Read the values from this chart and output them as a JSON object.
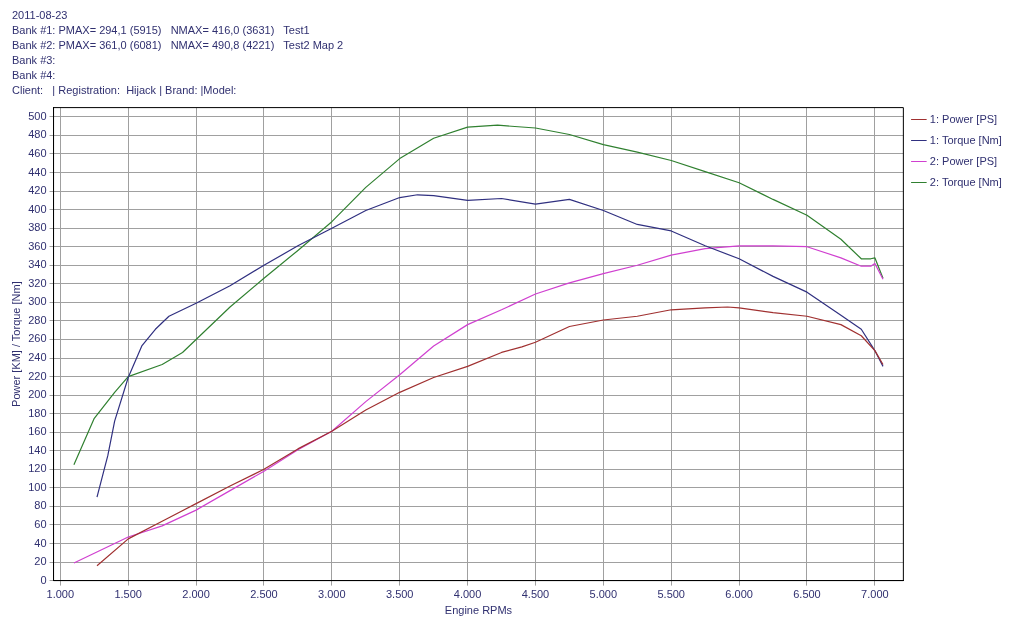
{
  "chart_data": {
    "type": "line",
    "annotations": [
      "2011-08-23",
      "Bank #1: PMAX= 294,1 (5915)   NMAX= 416,0 (3631)   Test1",
      "Bank #2: PMAX= 361,0 (6081)   NMAX= 490,8 (4221)   Test2 Map 2",
      "Bank #3:",
      "Bank #4:",
      "Client:   | Registration:  Hijack | Brand: |Model:"
    ],
    "xlabel": "Engine RPMs",
    "ylabel": "Power [KM] / Torque [Nm]",
    "series": [
      {
        "name": "1: Power [PS]",
        "color": "#a03030",
        "x": [
          1270,
          1500,
          1750,
          2000,
          2250,
          2500,
          2750,
          3000,
          3250,
          3500,
          3750,
          4000,
          4250,
          4400,
          4500,
          4750,
          5000,
          5250,
          5500,
          5750,
          5915,
          6000,
          6250,
          6500,
          6750,
          6900,
          7000,
          7060
        ],
        "values": [
          16,
          45,
          64,
          83,
          102,
          120,
          142,
          161,
          184,
          203,
          219,
          231,
          246,
          252,
          257,
          274,
          281,
          285,
          292,
          294,
          295,
          294,
          289,
          285,
          276,
          264,
          248,
          233
        ]
      },
      {
        "name": "1: Torque [Nm]",
        "color": "#303080",
        "x": [
          1270,
          1350,
          1400,
          1500,
          1600,
          1700,
          1800,
          2000,
          2250,
          2500,
          2750,
          3000,
          3250,
          3500,
          3631,
          3750,
          4000,
          4250,
          4500,
          4750,
          5000,
          5250,
          5500,
          5750,
          6000,
          6250,
          6500,
          6750,
          6900,
          7000,
          7060
        ],
        "values": [
          90,
          135,
          172,
          219,
          253,
          271,
          285,
          299,
          318,
          340,
          361,
          380,
          399,
          413,
          416,
          415,
          410,
          412,
          406,
          411,
          399,
          384,
          377,
          361,
          347,
          328,
          311,
          286,
          271,
          248,
          231
        ]
      },
      {
        "name": "2: Power [PS]",
        "color": "#d040d0",
        "x": [
          1100,
          1500,
          1750,
          2000,
          2250,
          2500,
          2750,
          3000,
          3250,
          3500,
          3750,
          4000,
          4250,
          4500,
          4750,
          5000,
          5250,
          5500,
          5750,
          6000,
          6081,
          6250,
          6500,
          6750,
          6900,
          6970,
          7000,
          7060
        ],
        "values": [
          19,
          47,
          59,
          76,
          97,
          118,
          141,
          161,
          193,
          222,
          253,
          276,
          292,
          309,
          321,
          331,
          340,
          351,
          358,
          361,
          361,
          361,
          360,
          348,
          339,
          339,
          342,
          325
        ]
      },
      {
        "name": "2: Torque [Nm]",
        "color": "#308030",
        "x": [
          1100,
          1250,
          1400,
          1500,
          1750,
          1900,
          2000,
          2250,
          2500,
          2750,
          3000,
          3250,
          3500,
          3750,
          4000,
          4221,
          4500,
          4750,
          5000,
          5250,
          5500,
          5750,
          6000,
          6250,
          6500,
          6750,
          6900,
          6970,
          7000,
          7060
        ],
        "values": [
          125,
          175,
          203,
          220,
          233,
          246,
          260,
          295,
          326,
          356,
          387,
          424,
          455,
          477,
          489,
          491,
          488,
          481,
          470,
          462,
          453,
          441,
          429,
          411,
          394,
          368,
          347,
          347,
          348,
          326
        ]
      }
    ],
    "xlim": [
      950,
      7210
    ],
    "xticks": [
      {
        "value": 1000,
        "label": "1.000"
      },
      {
        "value": 1500,
        "label": "1.500"
      },
      {
        "value": 2000,
        "label": "2.000"
      },
      {
        "value": 2500,
        "label": "2.500"
      },
      {
        "value": 3000,
        "label": "3.000"
      },
      {
        "value": 3500,
        "label": "3.500"
      },
      {
        "value": 4000,
        "label": "4.000"
      },
      {
        "value": 4500,
        "label": "4.500"
      },
      {
        "value": 5000,
        "label": "5.000"
      },
      {
        "value": 5500,
        "label": "5.500"
      },
      {
        "value": 6000,
        "label": "6.000"
      },
      {
        "value": 6500,
        "label": "6.500"
      },
      {
        "value": 7000,
        "label": "7.000"
      }
    ],
    "ylim": [
      0,
      510
    ],
    "yticks": [
      0,
      20,
      40,
      60,
      80,
      100,
      120,
      140,
      160,
      180,
      200,
      220,
      240,
      260,
      280,
      300,
      320,
      340,
      360,
      380,
      400,
      420,
      440,
      460,
      480,
      500
    ],
    "grid": true,
    "legend": "top right",
    "marker": "none",
    "line_style": "solid"
  }
}
